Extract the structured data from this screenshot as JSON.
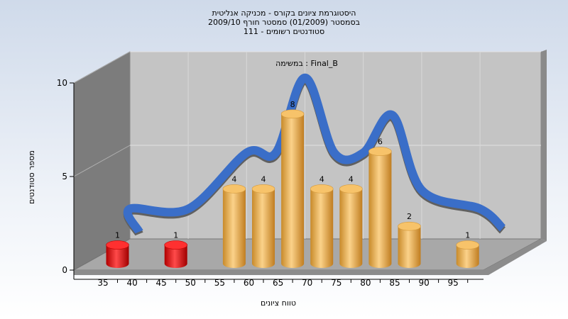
{
  "chart_data": {
    "type": "bar",
    "title_lines": [
      "היסטוגרמת ציונים בקורס - מכניקה אנליטית",
      "בסמסטר  (01/2009)  סמסטר חורף 2009/10",
      "סטודנטים רשומים - 111"
    ],
    "subtitle": "במשימה : Final_B",
    "xlabel": "טווח ציונים",
    "ylabel": "מספר סטודנטים",
    "ylim": [
      0,
      10
    ],
    "yticks": [
      "0",
      "5",
      "10"
    ],
    "xticks": [
      "35",
      "40",
      "45",
      "50",
      "55",
      "60",
      "65",
      "70",
      "75",
      "80",
      "85",
      "90",
      "95"
    ],
    "categories": [
      "35",
      "45",
      "55",
      "60",
      "65",
      "70",
      "75",
      "80",
      "85",
      "95"
    ],
    "values": [
      1,
      1,
      4,
      4,
      8,
      4,
      4,
      6,
      2,
      1
    ],
    "data_labels": [
      "1",
      "1",
      "4",
      "4",
      "8",
      "4",
      "4",
      "6",
      "2",
      "1"
    ],
    "failing_below": 55,
    "colors": {
      "fail_bar": "#e01010",
      "pass_bar": "#f0b050",
      "curve": "#3a6ec8",
      "curve_shadow": "#606060",
      "back_wall": "#c4c4c4",
      "side_wall": "#7c7c7c",
      "floor": "#a8a8a8"
    }
  }
}
